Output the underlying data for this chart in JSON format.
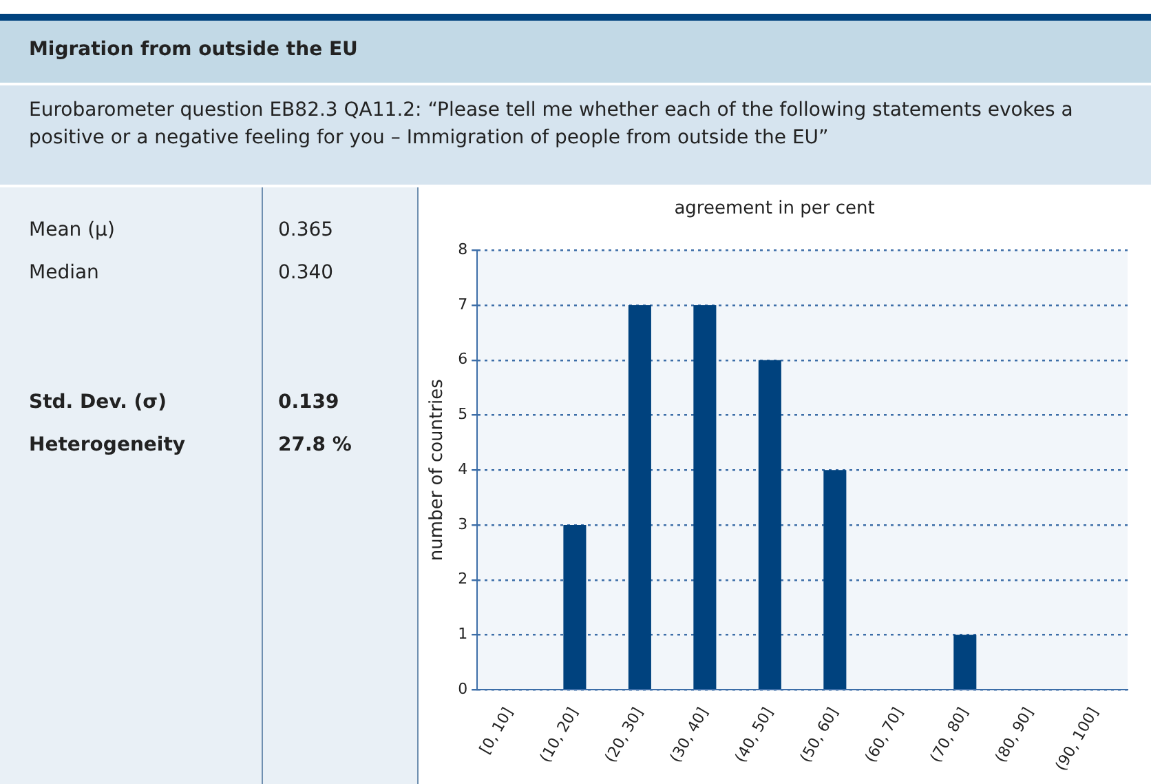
{
  "chart_data": [
    {
      "type": "other",
      "title": "Migration from outside the EU",
      "subtitle": "Eurobarometer question EB82.3 QA11.2: “Please tell me whether each of the following statements evokes a positive or a negative feeling for you – Immigration of people from outside the EU”",
      "annotations": [
        "Mean (μ)",
        "0.365",
        "Median",
        "0.340",
        "Std. Dev. (σ)",
        "0.139",
        "Heterogeneity",
        "27.8 %"
      ]
    },
    {
      "type": "bar",
      "title": "agreement in per cent",
      "ylabel": "number of countries",
      "categories": [
        "[0, 10]",
        "(10, 20]",
        "(20, 30]",
        "(30, 40]",
        "(40, 50]",
        "(50, 60]",
        "(60, 70]",
        "(70, 80]",
        "(80, 90]",
        "(90, 100]"
      ],
      "values": [
        0,
        3,
        7,
        7,
        6,
        4,
        0,
        1,
        0,
        0
      ],
      "color": "#00427e",
      "ylim": [
        0,
        8
      ],
      "yticks": [
        0,
        1,
        2,
        3,
        4,
        5,
        6,
        7,
        8
      ],
      "grid": "y"
    }
  ]
}
